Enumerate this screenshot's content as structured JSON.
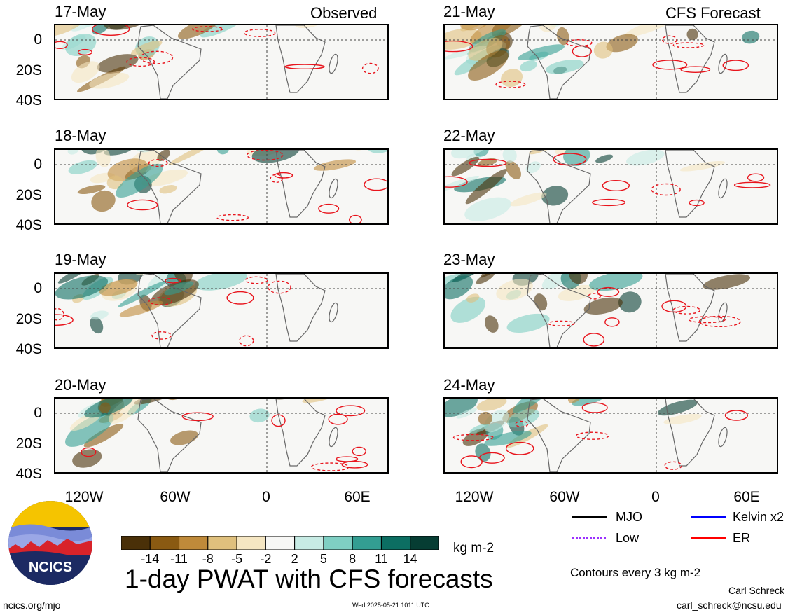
{
  "chart_data": {
    "type": "heatmap",
    "title": "1-day PWAT with CFS forecasts",
    "headers": {
      "observed": "Observed",
      "forecast": "CFS Forecast"
    },
    "panels": [
      {
        "date": "17-May",
        "column": "observed"
      },
      {
        "date": "18-May",
        "column": "observed"
      },
      {
        "date": "19-May",
        "column": "observed"
      },
      {
        "date": "20-May",
        "column": "observed"
      },
      {
        "date": "21-May",
        "column": "forecast"
      },
      {
        "date": "22-May",
        "column": "forecast"
      },
      {
        "date": "23-May",
        "column": "forecast"
      },
      {
        "date": "24-May",
        "column": "forecast"
      }
    ],
    "lat_ticks": [
      "0",
      "20S",
      "40S"
    ],
    "lon_ticks": [
      "120W",
      "60W",
      "0",
      "60E"
    ],
    "colorbar": {
      "unit": "kg m-2",
      "labels": [
        "-14",
        "-11",
        "-8",
        "-5",
        "-2",
        "2",
        "5",
        "8",
        "11",
        "14"
      ],
      "colors": [
        "#4a3008",
        "#8a5a12",
        "#bf8a3a",
        "#dfc07d",
        "#f5e6c2",
        "#f7f7f5",
        "#c7ebe4",
        "#7fcfc3",
        "#339e92",
        "#0c6e62",
        "#063d33"
      ]
    },
    "legend": [
      {
        "label": "MJO",
        "color": "#000000",
        "style": "solid"
      },
      {
        "label": "Kelvin x2",
        "color": "#0000ff",
        "style": "solid"
      },
      {
        "label": "Low",
        "color": "#9b30ff",
        "style": "dashed"
      },
      {
        "label": "ER",
        "color": "#ff0000",
        "style": "solid"
      }
    ],
    "contour_note": "Contours every 3 kg m-2"
  },
  "footer": {
    "logo_text": "NCICS",
    "url": "ncics.org/mjo",
    "timestamp": "Wed 2025-05-21 1011 UTC",
    "author": "Carl Schreck",
    "email": "carl_schreck@ncsu.edu"
  }
}
